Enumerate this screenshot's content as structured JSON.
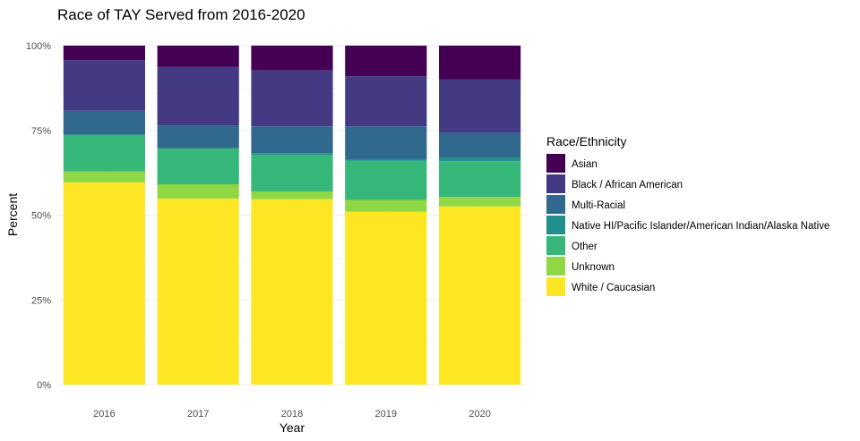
{
  "chart_data": {
    "type": "bar",
    "stacked": true,
    "title": "Race of TAY Served from 2016-2020",
    "xlabel": "Year",
    "ylabel": "Percent",
    "categories": [
      "2016",
      "2017",
      "2018",
      "2019",
      "2020"
    ],
    "y_ticks": [
      "0%",
      "25%",
      "50%",
      "75%",
      "100%"
    ],
    "ylim": [
      0,
      100
    ],
    "grid": true,
    "legend_title": "Race/Ethnicity",
    "legend_position": "right",
    "series": [
      {
        "name": "Asian",
        "color": "#440154",
        "values": [
          4.3,
          6.3,
          7.3,
          9.0,
          10.0
        ]
      },
      {
        "name": "Black / African American",
        "color": "#443A83",
        "values": [
          14.9,
          17.2,
          16.5,
          14.8,
          15.7
        ]
      },
      {
        "name": "Multi-Racial",
        "color": "#31688E",
        "values": [
          7.1,
          6.8,
          7.9,
          9.7,
          7.3
        ]
      },
      {
        "name": "Native HI/Pacific Islander/American Indian/Alaska Native",
        "color": "#21908C",
        "values": [
          0.0,
          0.0,
          0.5,
          0.5,
          1.1
        ]
      },
      {
        "name": "Other",
        "color": "#35B779",
        "values": [
          10.8,
          10.6,
          10.8,
          11.5,
          10.5
        ]
      },
      {
        "name": "Unknown",
        "color": "#8FD744",
        "values": [
          3.2,
          4.2,
          2.3,
          3.5,
          2.8
        ]
      },
      {
        "name": "White / Caucasian",
        "color": "#FDE725",
        "values": [
          59.7,
          54.9,
          54.7,
          51.0,
          52.6
        ]
      }
    ]
  }
}
